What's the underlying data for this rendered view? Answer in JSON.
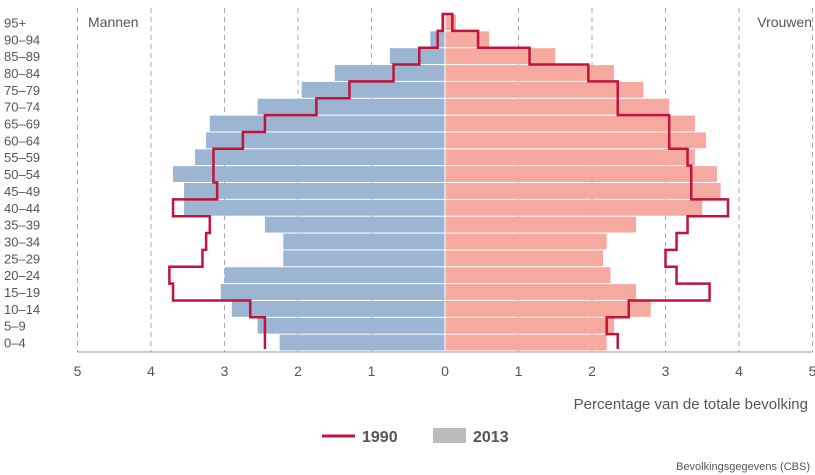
{
  "chart_data": {
    "type": "bar",
    "subtype": "population-pyramid",
    "categories": [
      "0-4",
      "5-9",
      "10-14",
      "15-19",
      "20-24",
      "25-29",
      "30-34",
      "35-39",
      "40-44",
      "45-49",
      "50-54",
      "55-59",
      "60-64",
      "65-69",
      "70-74",
      "75-79",
      "80-84",
      "85-89",
      "90-94",
      "95+"
    ],
    "series": [
      {
        "name": "2013",
        "style": "bars",
        "men": [
          2.25,
          2.55,
          2.9,
          3.05,
          3.0,
          2.2,
          2.2,
          2.45,
          3.55,
          3.55,
          3.7,
          3.4,
          3.25,
          3.2,
          2.55,
          1.95,
          1.5,
          0.75,
          0.2,
          0.05
        ],
        "women": [
          2.2,
          2.3,
          2.8,
          2.6,
          2.25,
          2.15,
          2.2,
          2.6,
          3.5,
          3.75,
          3.7,
          3.4,
          3.55,
          3.4,
          3.05,
          2.7,
          2.3,
          1.5,
          0.6,
          0.15
        ]
      },
      {
        "name": "1990",
        "style": "line",
        "men": [
          2.45,
          2.45,
          2.65,
          3.7,
          3.75,
          3.3,
          3.25,
          3.2,
          3.7,
          3.1,
          3.15,
          3.15,
          2.75,
          2.45,
          1.75,
          1.3,
          0.7,
          0.35,
          0.1,
          0.03
        ],
        "women": [
          2.35,
          2.2,
          2.5,
          3.6,
          3.15,
          3.0,
          3.15,
          3.3,
          3.85,
          3.35,
          3.35,
          3.3,
          3.05,
          3.05,
          2.35,
          2.35,
          1.95,
          1.15,
          0.45,
          0.1
        ]
      }
    ],
    "xlim": [
      -5,
      5
    ],
    "x_ticks": [
      "5",
      "4",
      "3",
      "2",
      "1",
      "0",
      "1",
      "2",
      "3",
      "4",
      "5"
    ],
    "xlabel": "Percentage van de totale bevolking",
    "left_label": "Mannen",
    "right_label": "Vrouwen",
    "legend": [
      {
        "label": "1990",
        "type": "line"
      },
      {
        "label": "2013",
        "type": "bar"
      }
    ],
    "legend_position": "bottom-center",
    "grid": "vertical-dashed",
    "source": "Bevolkingsgegevens (CBS)",
    "colors": {
      "men_bar": "#9bb5d3",
      "women_bar": "#f5a99f",
      "line_1990": "#c0143c",
      "legend_bar": "#bbbbbb",
      "grid": "#aaaaaa",
      "text": "#555555"
    }
  }
}
